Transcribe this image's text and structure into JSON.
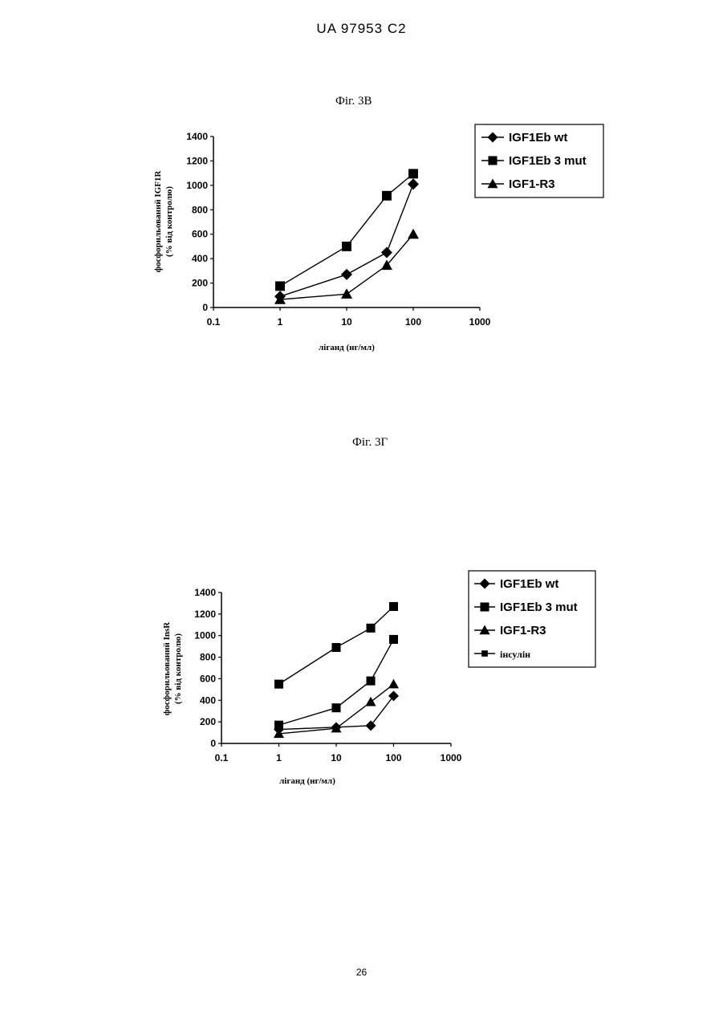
{
  "header": {
    "text": "UA   97953   C2"
  },
  "page_number": "26",
  "chart_data": [
    {
      "type": "line",
      "fig_title": "Фіг. 3В",
      "xlabel": "ліганд (нг/мл)",
      "ylabel_line1": "фосфорильований IGF1R",
      "ylabel_line2": "(% від контролю)",
      "x_scale": "log",
      "xlim": [
        0.1,
        1000
      ],
      "x_ticks": [
        "0.1",
        "1",
        "10",
        "100",
        "1000"
      ],
      "ylim": [
        0,
        1400
      ],
      "y_ticks": [
        "0",
        "200",
        "400",
        "600",
        "800",
        "1000",
        "1200",
        "1400"
      ],
      "grid": false,
      "legend_position": "top-right",
      "series": [
        {
          "name": "IGF1Eb wt",
          "marker": "diamond",
          "x": [
            1,
            10,
            40,
            100
          ],
          "y": [
            90,
            270,
            450,
            1010
          ]
        },
        {
          "name": "IGF1Eb 3 mut",
          "marker": "square",
          "x": [
            1,
            10,
            40,
            100
          ],
          "y": [
            175,
            500,
            915,
            1095
          ]
        },
        {
          "name": "IGF1-R3",
          "marker": "triangle",
          "x": [
            1,
            10,
            40,
            100
          ],
          "y": [
            65,
            110,
            345,
            600
          ]
        }
      ]
    },
    {
      "type": "line",
      "fig_title": "Фіг. 3Г",
      "xlabel": "ліганд (нг/мл)",
      "ylabel_line1": "фосфорильований InsR",
      "ylabel_line2": "(% від контролю)",
      "x_scale": "log",
      "xlim": [
        0.1,
        1000
      ],
      "x_ticks": [
        "0.1",
        "1",
        "10",
        "100",
        "1000"
      ],
      "ylim": [
        0,
        1400
      ],
      "y_ticks": [
        "0",
        "200",
        "400",
        "600",
        "800",
        "1000",
        "1200",
        "1400"
      ],
      "grid": false,
      "legend_position": "top-right",
      "series": [
        {
          "name": "IGF1Eb wt",
          "marker": "diamond",
          "x": [
            1,
            10,
            40,
            100
          ],
          "y": [
            130,
            150,
            165,
            440
          ]
        },
        {
          "name": "IGF1Eb 3 mut",
          "marker": "square",
          "x": [
            1,
            10,
            40,
            100
          ],
          "y": [
            170,
            330,
            580,
            965
          ]
        },
        {
          "name": "IGF1-R3",
          "marker": "triangle",
          "x": [
            1,
            10,
            40,
            100
          ],
          "y": [
            90,
            140,
            385,
            550
          ]
        },
        {
          "name": "інсулін",
          "marker": "square",
          "x": [
            1,
            10,
            40,
            100
          ],
          "y": [
            550,
            890,
            1070,
            1270
          ]
        }
      ]
    }
  ]
}
